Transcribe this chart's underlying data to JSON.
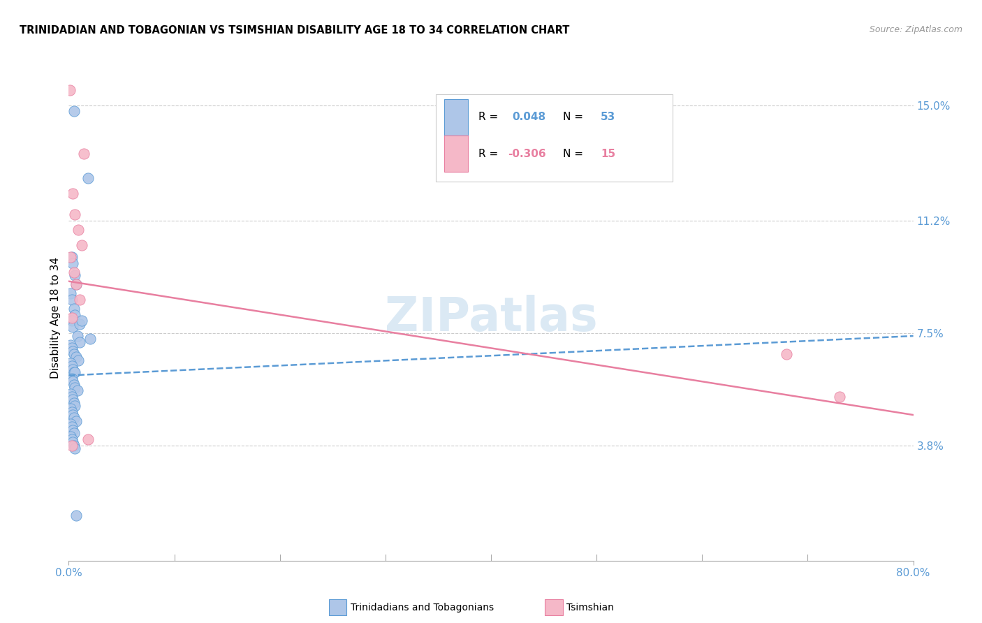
{
  "title": "TRINIDADIAN AND TOBAGONIAN VS TSIMSHIAN DISABILITY AGE 18 TO 34 CORRELATION CHART",
  "source": "Source: ZipAtlas.com",
  "ylabel": "Disability Age 18 to 34",
  "xlim": [
    0.0,
    0.8
  ],
  "ylim": [
    0.0,
    0.16
  ],
  "xtick_positions": [
    0.0,
    0.8
  ],
  "xtick_labels": [
    "0.0%",
    "80.0%"
  ],
  "ytick_values": [
    0.038,
    0.075,
    0.112,
    0.15
  ],
  "ytick_labels": [
    "3.8%",
    "7.5%",
    "11.2%",
    "15.0%"
  ],
  "blue_color": "#aec6e8",
  "pink_color": "#f5b8c8",
  "blue_edge_color": "#5b9bd5",
  "pink_edge_color": "#e87fa0",
  "blue_line_color": "#5b9bd5",
  "pink_line_color": "#e87fa0",
  "watermark": "ZIPatlas",
  "watermark_color": "#cce0f0",
  "grid_color": "#cccccc",
  "axis_color": "#aaaaaa",
  "tick_label_color": "#5b9bd5",
  "legend_r_color": "#000000",
  "legend_val_blue_color": "#5b9bd5",
  "legend_val_pink_color": "#e87fa0",
  "blue_scatter_x": [
    0.005,
    0.018,
    0.003,
    0.004,
    0.006,
    0.007,
    0.002,
    0.003,
    0.005,
    0.006,
    0.003,
    0.004,
    0.008,
    0.01,
    0.002,
    0.003,
    0.004,
    0.005,
    0.007,
    0.009,
    0.002,
    0.003,
    0.004,
    0.005,
    0.006,
    0.003,
    0.004,
    0.005,
    0.006,
    0.008,
    0.002,
    0.003,
    0.004,
    0.005,
    0.006,
    0.002,
    0.003,
    0.004,
    0.005,
    0.007,
    0.002,
    0.003,
    0.004,
    0.005,
    0.002,
    0.003,
    0.004,
    0.005,
    0.01,
    0.012,
    0.02,
    0.006,
    0.007
  ],
  "blue_scatter_y": [
    0.148,
    0.126,
    0.1,
    0.098,
    0.094,
    0.091,
    0.088,
    0.086,
    0.083,
    0.081,
    0.079,
    0.077,
    0.074,
    0.072,
    0.071,
    0.07,
    0.069,
    0.068,
    0.067,
    0.066,
    0.065,
    0.064,
    0.063,
    0.062,
    0.062,
    0.06,
    0.059,
    0.058,
    0.057,
    0.056,
    0.055,
    0.054,
    0.053,
    0.052,
    0.051,
    0.05,
    0.049,
    0.048,
    0.047,
    0.046,
    0.045,
    0.044,
    0.043,
    0.042,
    0.041,
    0.04,
    0.039,
    0.038,
    0.078,
    0.079,
    0.073,
    0.037,
    0.015
  ],
  "pink_scatter_x": [
    0.001,
    0.004,
    0.006,
    0.009,
    0.012,
    0.002,
    0.005,
    0.007,
    0.01,
    0.014,
    0.003,
    0.018,
    0.68,
    0.73,
    0.003
  ],
  "pink_scatter_y": [
    0.155,
    0.121,
    0.114,
    0.109,
    0.104,
    0.1,
    0.095,
    0.091,
    0.086,
    0.134,
    0.08,
    0.04,
    0.068,
    0.054,
    0.038
  ],
  "blue_trend_x": [
    0.0,
    0.8
  ],
  "blue_trend_y": [
    0.061,
    0.074
  ],
  "pink_trend_x": [
    0.0,
    0.8
  ],
  "pink_trend_y": [
    0.092,
    0.048
  ]
}
